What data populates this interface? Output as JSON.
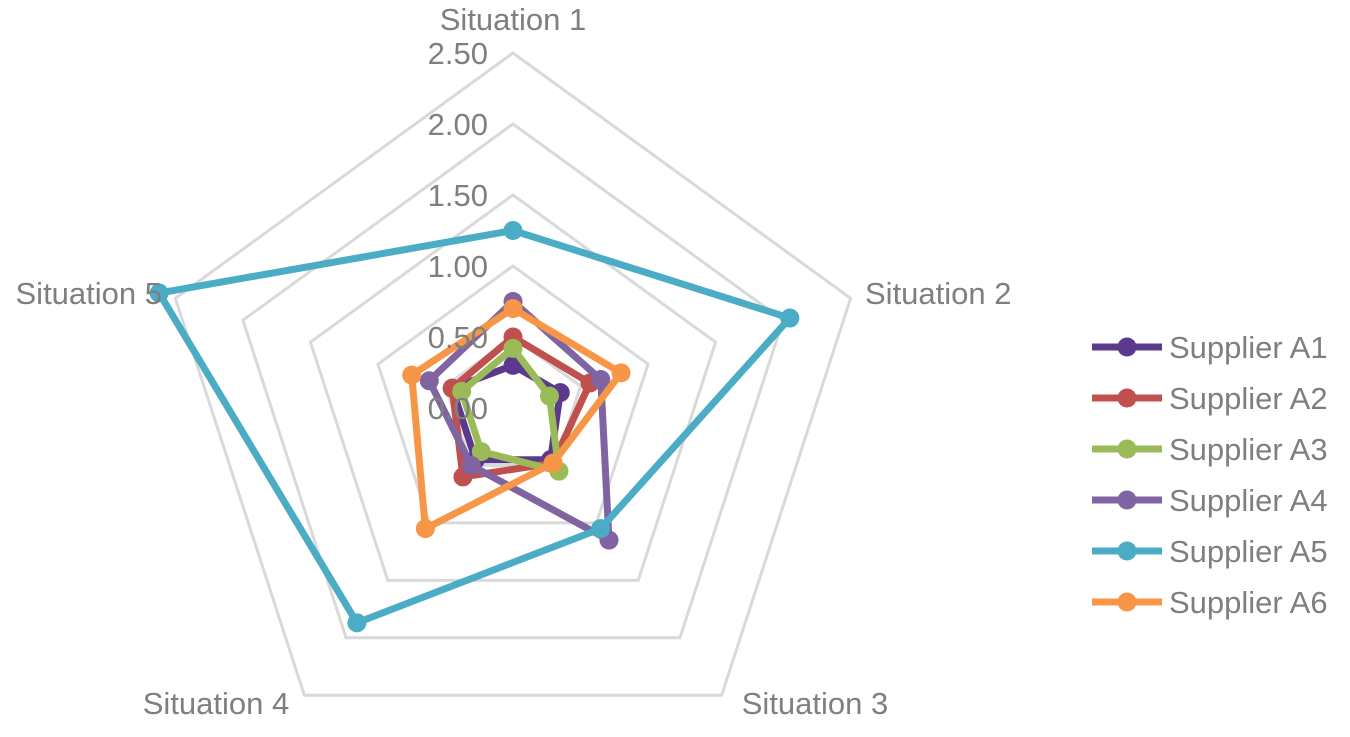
{
  "chart_data": {
    "type": "radar",
    "title": "",
    "axes": [
      "Situation 1",
      "Situation 2",
      "Situation 3",
      "Situation 4",
      "Situation 5"
    ],
    "rlim": [
      0,
      2.5
    ],
    "rticks": [
      "0.00",
      "0.50",
      "1.00",
      "1.50",
      "2.00",
      "2.50"
    ],
    "grid": true,
    "legend_position": "right",
    "series": [
      {
        "name": "Supplier A1",
        "color": "#5b3a8e",
        "values": [
          0.3,
          0.35,
          0.45,
          0.45,
          0.45
        ]
      },
      {
        "name": "Supplier A2",
        "color": "#c0504d",
        "values": [
          0.5,
          0.57,
          0.48,
          0.6,
          0.45
        ]
      },
      {
        "name": "Supplier A3",
        "color": "#9bbb59",
        "values": [
          0.42,
          0.27,
          0.55,
          0.38,
          0.38
        ]
      },
      {
        "name": "Supplier A4",
        "color": "#8064a2",
        "values": [
          0.75,
          0.65,
          1.15,
          0.5,
          0.62
        ]
      },
      {
        "name": "Supplier A5",
        "color": "#4bacc6",
        "values": [
          1.25,
          2.05,
          1.05,
          1.87,
          2.62
        ]
      },
      {
        "name": "Supplier A6",
        "color": "#f79646",
        "values": [
          0.7,
          0.8,
          0.48,
          1.05,
          0.75
        ]
      }
    ]
  }
}
